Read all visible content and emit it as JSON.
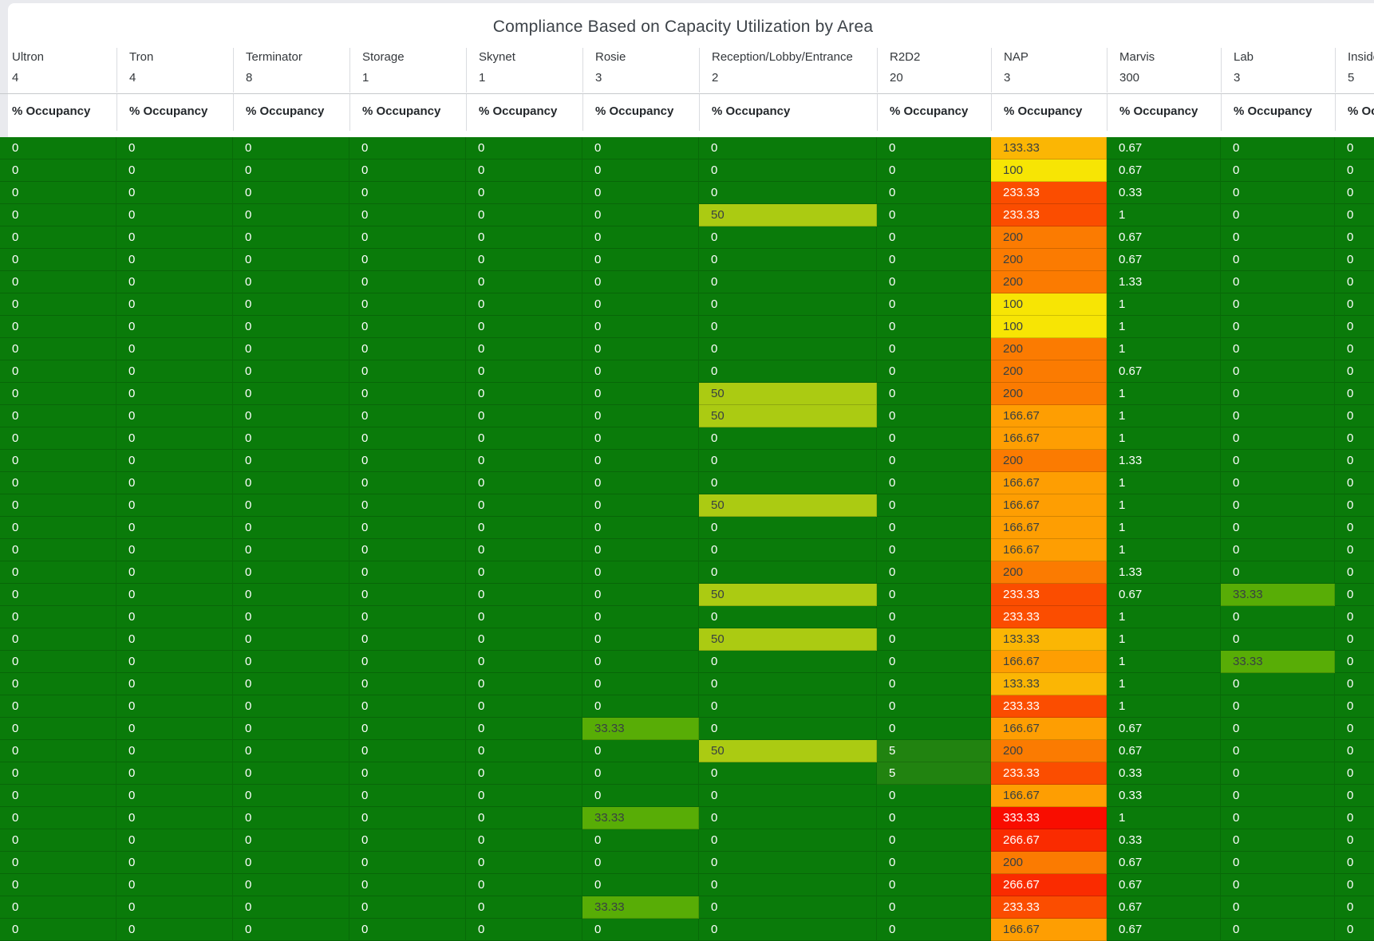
{
  "title": "Compliance Based on Capacity Utilization by Area",
  "occupancy_label": "% Occupancy",
  "columns": [
    {
      "name": "Ultron",
      "capacity": "4"
    },
    {
      "name": "Tron",
      "capacity": "4"
    },
    {
      "name": "Terminator",
      "capacity": "8"
    },
    {
      "name": "Storage",
      "capacity": "1"
    },
    {
      "name": "Skynet",
      "capacity": "1"
    },
    {
      "name": "Rosie",
      "capacity": "3"
    },
    {
      "name": "Reception/Lobby/Entrance",
      "capacity": "2"
    },
    {
      "name": "R2D2",
      "capacity": "20"
    },
    {
      "name": "NAP",
      "capacity": "3"
    },
    {
      "name": "Marvis",
      "capacity": "300"
    },
    {
      "name": "Lab",
      "capacity": "3"
    },
    {
      "name": "Inside",
      "capacity": "5"
    }
  ],
  "palette": {
    "0": {
      "bg": "#0a7b0a",
      "fg": "#ffffff"
    },
    "5": {
      "bg": "#218310",
      "fg": "#ffffff"
    },
    "33.33": {
      "bg": "#58ad06",
      "fg": "#384042"
    },
    "50": {
      "bg": "#abcb12",
      "fg": "#384042"
    },
    "100": {
      "bg": "#f7e504",
      "fg": "#384042"
    },
    "133.33": {
      "bg": "#fbb604",
      "fg": "#384042"
    },
    "166.67": {
      "bg": "#fe9e02",
      "fg": "#384042"
    },
    "200": {
      "bg": "#fb7b01",
      "fg": "#384042"
    },
    "233.33": {
      "bg": "#fb4d00",
      "fg": "#ffffff"
    },
    "266.67": {
      "bg": "#fa2b00",
      "fg": "#ffffff"
    },
    "333.33": {
      "bg": "#f90d00",
      "fg": "#ffffff"
    },
    "other": {
      "bg": "#0a7b0a",
      "fg": "#ffffff"
    }
  },
  "rows": [
    [
      "0",
      "0",
      "0",
      "0",
      "0",
      "0",
      "0",
      "0",
      "133.33",
      "0.67",
      "0",
      "0"
    ],
    [
      "0",
      "0",
      "0",
      "0",
      "0",
      "0",
      "0",
      "0",
      "100",
      "0.67",
      "0",
      "0"
    ],
    [
      "0",
      "0",
      "0",
      "0",
      "0",
      "0",
      "0",
      "0",
      "233.33",
      "0.33",
      "0",
      "0"
    ],
    [
      "0",
      "0",
      "0",
      "0",
      "0",
      "0",
      "50",
      "0",
      "233.33",
      "1",
      "0",
      "0"
    ],
    [
      "0",
      "0",
      "0",
      "0",
      "0",
      "0",
      "0",
      "0",
      "200",
      "0.67",
      "0",
      "0"
    ],
    [
      "0",
      "0",
      "0",
      "0",
      "0",
      "0",
      "0",
      "0",
      "200",
      "0.67",
      "0",
      "0"
    ],
    [
      "0",
      "0",
      "0",
      "0",
      "0",
      "0",
      "0",
      "0",
      "200",
      "1.33",
      "0",
      "0"
    ],
    [
      "0",
      "0",
      "0",
      "0",
      "0",
      "0",
      "0",
      "0",
      "100",
      "1",
      "0",
      "0"
    ],
    [
      "0",
      "0",
      "0",
      "0",
      "0",
      "0",
      "0",
      "0",
      "100",
      "1",
      "0",
      "0"
    ],
    [
      "0",
      "0",
      "0",
      "0",
      "0",
      "0",
      "0",
      "0",
      "200",
      "1",
      "0",
      "0"
    ],
    [
      "0",
      "0",
      "0",
      "0",
      "0",
      "0",
      "0",
      "0",
      "200",
      "0.67",
      "0",
      "0"
    ],
    [
      "0",
      "0",
      "0",
      "0",
      "0",
      "0",
      "50",
      "0",
      "200",
      "1",
      "0",
      "0"
    ],
    [
      "0",
      "0",
      "0",
      "0",
      "0",
      "0",
      "50",
      "0",
      "166.67",
      "1",
      "0",
      "0"
    ],
    [
      "0",
      "0",
      "0",
      "0",
      "0",
      "0",
      "0",
      "0",
      "166.67",
      "1",
      "0",
      "0"
    ],
    [
      "0",
      "0",
      "0",
      "0",
      "0",
      "0",
      "0",
      "0",
      "200",
      "1.33",
      "0",
      "0"
    ],
    [
      "0",
      "0",
      "0",
      "0",
      "0",
      "0",
      "0",
      "0",
      "166.67",
      "1",
      "0",
      "0"
    ],
    [
      "0",
      "0",
      "0",
      "0",
      "0",
      "0",
      "50",
      "0",
      "166.67",
      "1",
      "0",
      "0"
    ],
    [
      "0",
      "0",
      "0",
      "0",
      "0",
      "0",
      "0",
      "0",
      "166.67",
      "1",
      "0",
      "0"
    ],
    [
      "0",
      "0",
      "0",
      "0",
      "0",
      "0",
      "0",
      "0",
      "166.67",
      "1",
      "0",
      "0"
    ],
    [
      "0",
      "0",
      "0",
      "0",
      "0",
      "0",
      "0",
      "0",
      "200",
      "1.33",
      "0",
      "0"
    ],
    [
      "0",
      "0",
      "0",
      "0",
      "0",
      "0",
      "50",
      "0",
      "233.33",
      "0.67",
      "33.33",
      "0"
    ],
    [
      "0",
      "0",
      "0",
      "0",
      "0",
      "0",
      "0",
      "0",
      "233.33",
      "1",
      "0",
      "0"
    ],
    [
      "0",
      "0",
      "0",
      "0",
      "0",
      "0",
      "50",
      "0",
      "133.33",
      "1",
      "0",
      "0"
    ],
    [
      "0",
      "0",
      "0",
      "0",
      "0",
      "0",
      "0",
      "0",
      "166.67",
      "1",
      "33.33",
      "0"
    ],
    [
      "0",
      "0",
      "0",
      "0",
      "0",
      "0",
      "0",
      "0",
      "133.33",
      "1",
      "0",
      "0"
    ],
    [
      "0",
      "0",
      "0",
      "0",
      "0",
      "0",
      "0",
      "0",
      "233.33",
      "1",
      "0",
      "0"
    ],
    [
      "0",
      "0",
      "0",
      "0",
      "0",
      "33.33",
      "0",
      "0",
      "166.67",
      "0.67",
      "0",
      "0"
    ],
    [
      "0",
      "0",
      "0",
      "0",
      "0",
      "0",
      "50",
      "5",
      "200",
      "0.67",
      "0",
      "0"
    ],
    [
      "0",
      "0",
      "0",
      "0",
      "0",
      "0",
      "0",
      "5",
      "233.33",
      "0.33",
      "0",
      "0"
    ],
    [
      "0",
      "0",
      "0",
      "0",
      "0",
      "0",
      "0",
      "0",
      "166.67",
      "0.33",
      "0",
      "0"
    ],
    [
      "0",
      "0",
      "0",
      "0",
      "0",
      "33.33",
      "0",
      "0",
      "333.33",
      "1",
      "0",
      "0"
    ],
    [
      "0",
      "0",
      "0",
      "0",
      "0",
      "0",
      "0",
      "0",
      "266.67",
      "0.33",
      "0",
      "0"
    ],
    [
      "0",
      "0",
      "0",
      "0",
      "0",
      "0",
      "0",
      "0",
      "200",
      "0.67",
      "0",
      "0"
    ],
    [
      "0",
      "0",
      "0",
      "0",
      "0",
      "0",
      "0",
      "0",
      "266.67",
      "0.67",
      "0",
      "0"
    ],
    [
      "0",
      "0",
      "0",
      "0",
      "0",
      "33.33",
      "0",
      "0",
      "233.33",
      "0.67",
      "0",
      "0"
    ],
    [
      "0",
      "0",
      "0",
      "0",
      "0",
      "0",
      "0",
      "0",
      "166.67",
      "0.67",
      "0",
      "0"
    ]
  ]
}
